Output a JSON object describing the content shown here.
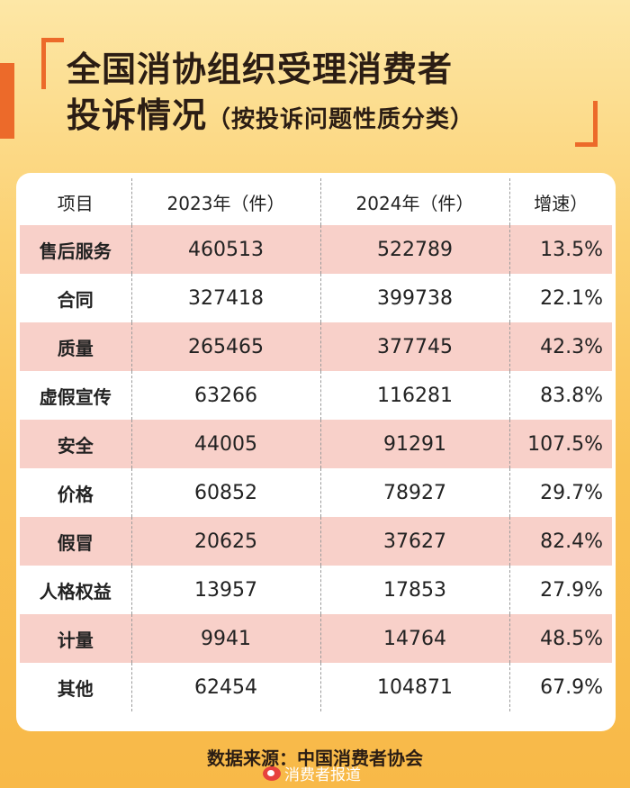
{
  "title": {
    "line1": "全国消协组织受理消费者",
    "line2": "投诉情况",
    "paren": "（按投诉问题性质分类）"
  },
  "table": {
    "headers": [
      "项目",
      "2023年（件）",
      "2024年（件）",
      "增速）"
    ],
    "rows": [
      {
        "item": "售后服务",
        "y2023": "460513",
        "y2024": "522789",
        "growth": "13.5%"
      },
      {
        "item": "合同",
        "y2023": "327418",
        "y2024": "399738",
        "growth": "22.1%"
      },
      {
        "item": "质量",
        "y2023": "265465",
        "y2024": "377745",
        "growth": "42.3%"
      },
      {
        "item": "虚假宣传",
        "y2023": "63266",
        "y2024": "116281",
        "growth": "83.8%"
      },
      {
        "item": "安全",
        "y2023": "44005",
        "y2024": "91291",
        "growth": "107.5%"
      },
      {
        "item": "价格",
        "y2023": "60852",
        "y2024": "78927",
        "growth": "29.7%"
      },
      {
        "item": "假冒",
        "y2023": "20625",
        "y2024": "37627",
        "growth": "82.4%"
      },
      {
        "item": "人格权益",
        "y2023": "13957",
        "y2024": "17853",
        "growth": "27.9%"
      },
      {
        "item": "计量",
        "y2023": "9941",
        "y2024": "14764",
        "growth": "48.5%"
      },
      {
        "item": "其他",
        "y2023": "62454",
        "y2024": "104871",
        "growth": "67.9%"
      }
    ]
  },
  "source": "数据来源：中国消费者协会",
  "watermark": "消费者报道",
  "colors": {
    "accent": "#ec6a2a",
    "row_highlight": "#f8d0c9",
    "background": "#fbd173"
  }
}
